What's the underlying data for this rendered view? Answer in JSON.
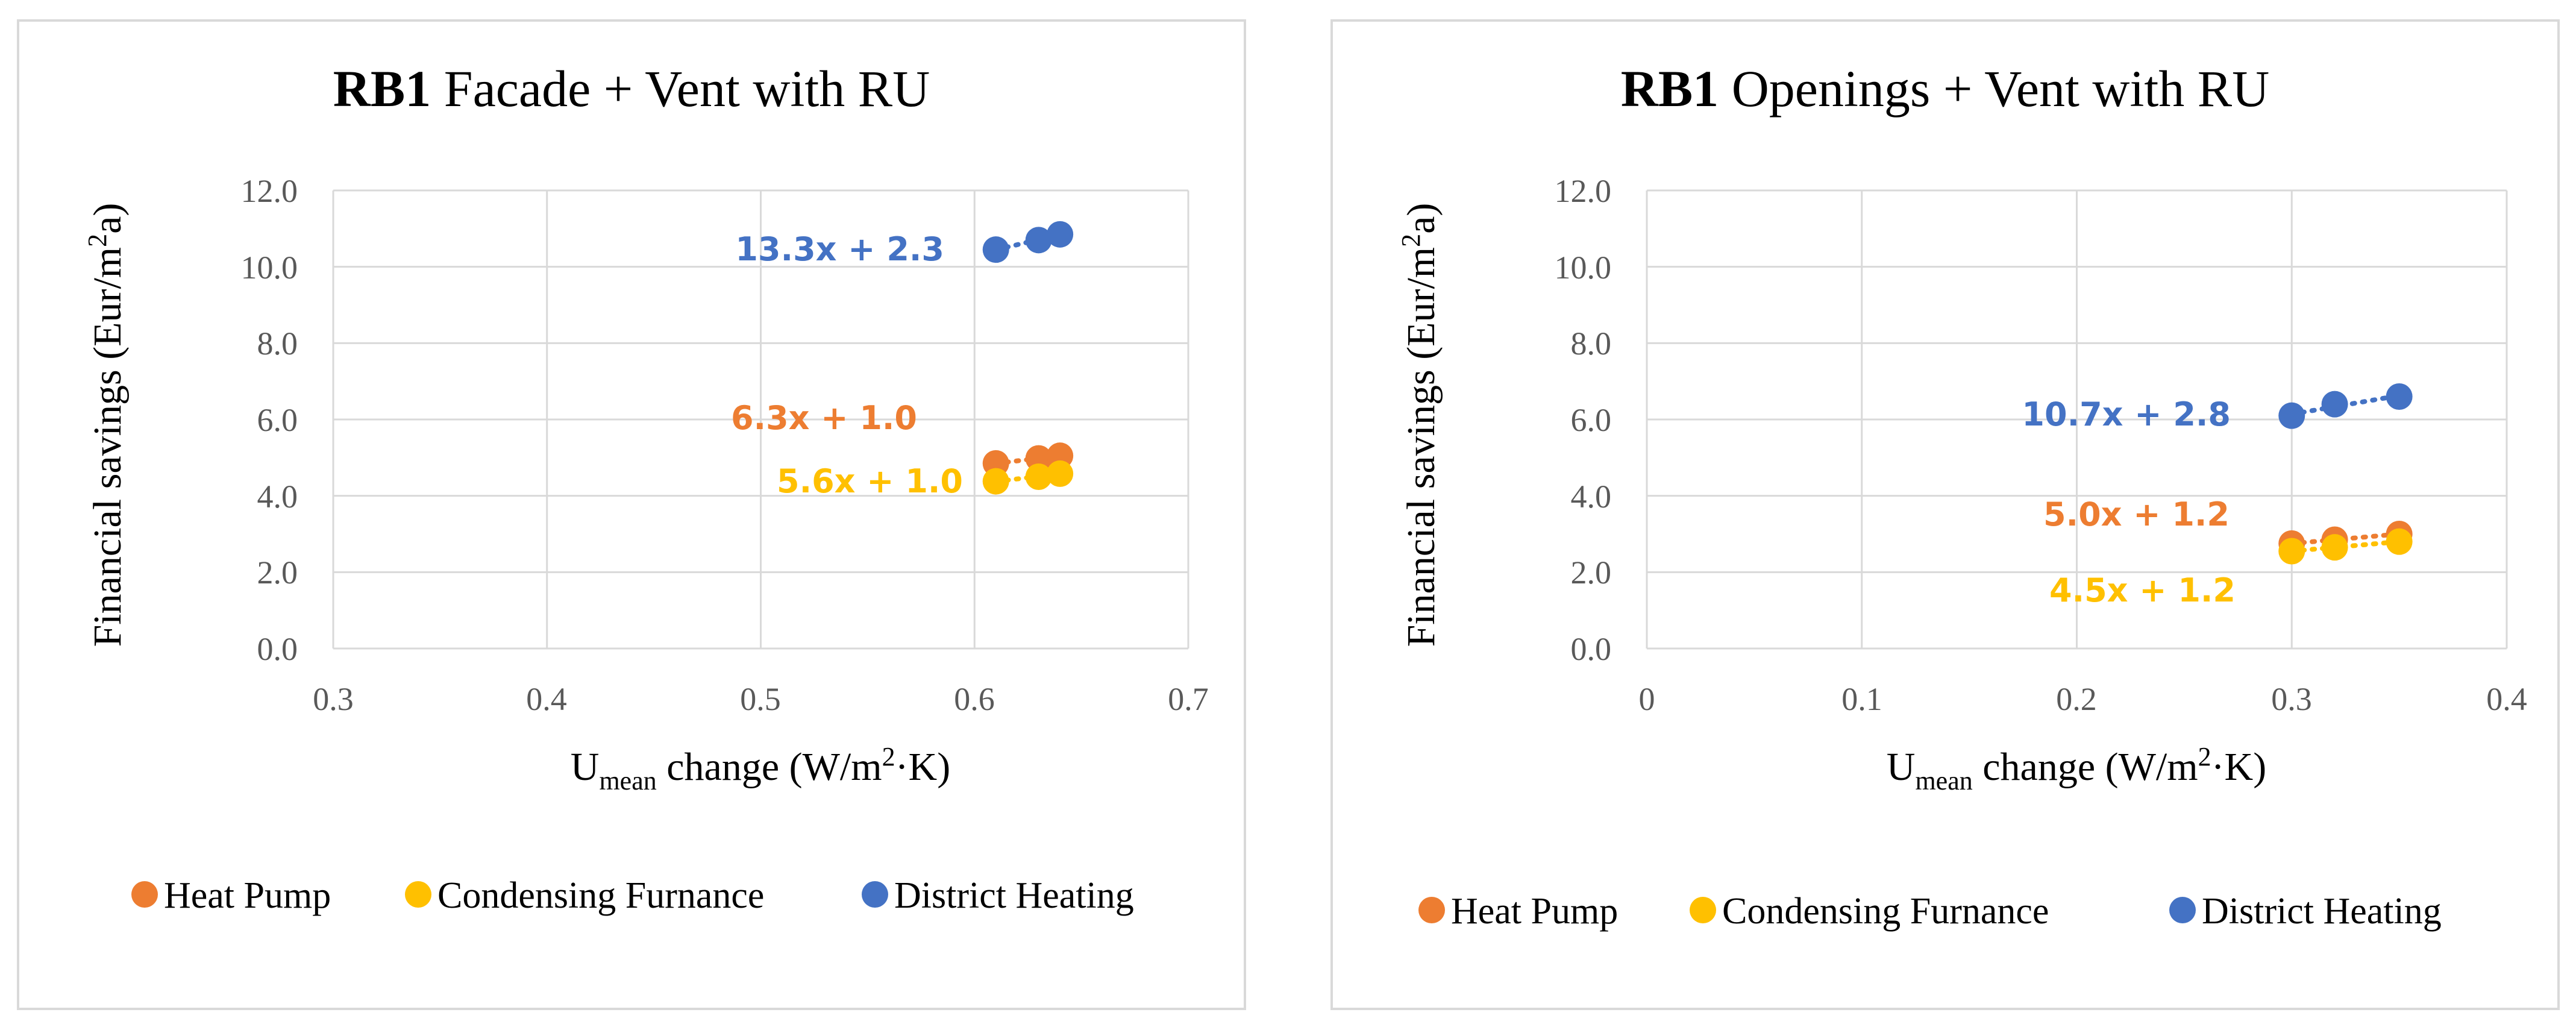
{
  "chart_data": [
    {
      "type": "scatter",
      "title_bold": "RB1",
      "title_rest": "Facade + Vent with RU",
      "xlabel": {
        "main": "U",
        "sub": "mean",
        "mid": " change  (W/m",
        "sup": "2",
        "end": "·K)"
      },
      "ylabel": {
        "main": "Financial savings (Eur/m",
        "sup": "2",
        "end": "a)"
      },
      "xlim": [
        0.3,
        0.7
      ],
      "ylim": [
        0,
        12
      ],
      "xticks": [
        "0.3",
        "0.4",
        "0.5",
        "0.6",
        "0.7"
      ],
      "yticks": [
        "0.0",
        "2.0",
        "4.0",
        "6.0",
        "8.0",
        "10.0",
        "12.0"
      ],
      "legend_position": "bottom",
      "series": [
        {
          "name": "Heat Pump",
          "color": "#ed7d31",
          "x": [
            0.61,
            0.63,
            0.64
          ],
          "y": [
            4.85,
            4.98,
            5.05
          ],
          "trendline": "6.3x + 1.0"
        },
        {
          "name": "Condensing Furnance",
          "color": "#ffc000",
          "x": [
            0.61,
            0.63,
            0.64
          ],
          "y": [
            4.38,
            4.5,
            4.58
          ],
          "trendline": "5.6x + 1.0"
        },
        {
          "name": "District Heating",
          "color": "#4472c4",
          "x": [
            0.61,
            0.63,
            0.64
          ],
          "y": [
            10.45,
            10.7,
            10.85
          ],
          "trendline": "13.3x + 2.3"
        }
      ]
    },
    {
      "type": "scatter",
      "title_bold": "RB1",
      "title_rest": "Openings + Vent with RU",
      "xlabel": {
        "main": "U",
        "sub": "mean",
        "mid": " change  (W/m",
        "sup": "2",
        "end": "·K)"
      },
      "ylabel": {
        "main": "Financial savings (Eur/m",
        "sup": "2",
        "end": "a)"
      },
      "xlim": [
        0,
        0.4
      ],
      "ylim": [
        0,
        12
      ],
      "xticks": [
        "0",
        "0.1",
        "0.2",
        "0.3",
        "0.4"
      ],
      "yticks": [
        "0.0",
        "2.0",
        "4.0",
        "6.0",
        "8.0",
        "10.0",
        "12.0"
      ],
      "legend_position": "bottom",
      "series": [
        {
          "name": "Heat Pump",
          "color": "#ed7d31",
          "x": [
            0.3,
            0.32,
            0.35
          ],
          "y": [
            2.75,
            2.85,
            3.0
          ],
          "trendline": "5.0x + 1.2"
        },
        {
          "name": "Condensing Furnance",
          "color": "#ffc000",
          "x": [
            0.3,
            0.32,
            0.35
          ],
          "y": [
            2.55,
            2.65,
            2.8
          ],
          "trendline": "4.5x + 1.2"
        },
        {
          "name": "District Heating",
          "color": "#4472c4",
          "x": [
            0.3,
            0.32,
            0.35
          ],
          "y": [
            6.1,
            6.4,
            6.6
          ],
          "trendline": "10.7x + 2.8"
        }
      ]
    }
  ]
}
